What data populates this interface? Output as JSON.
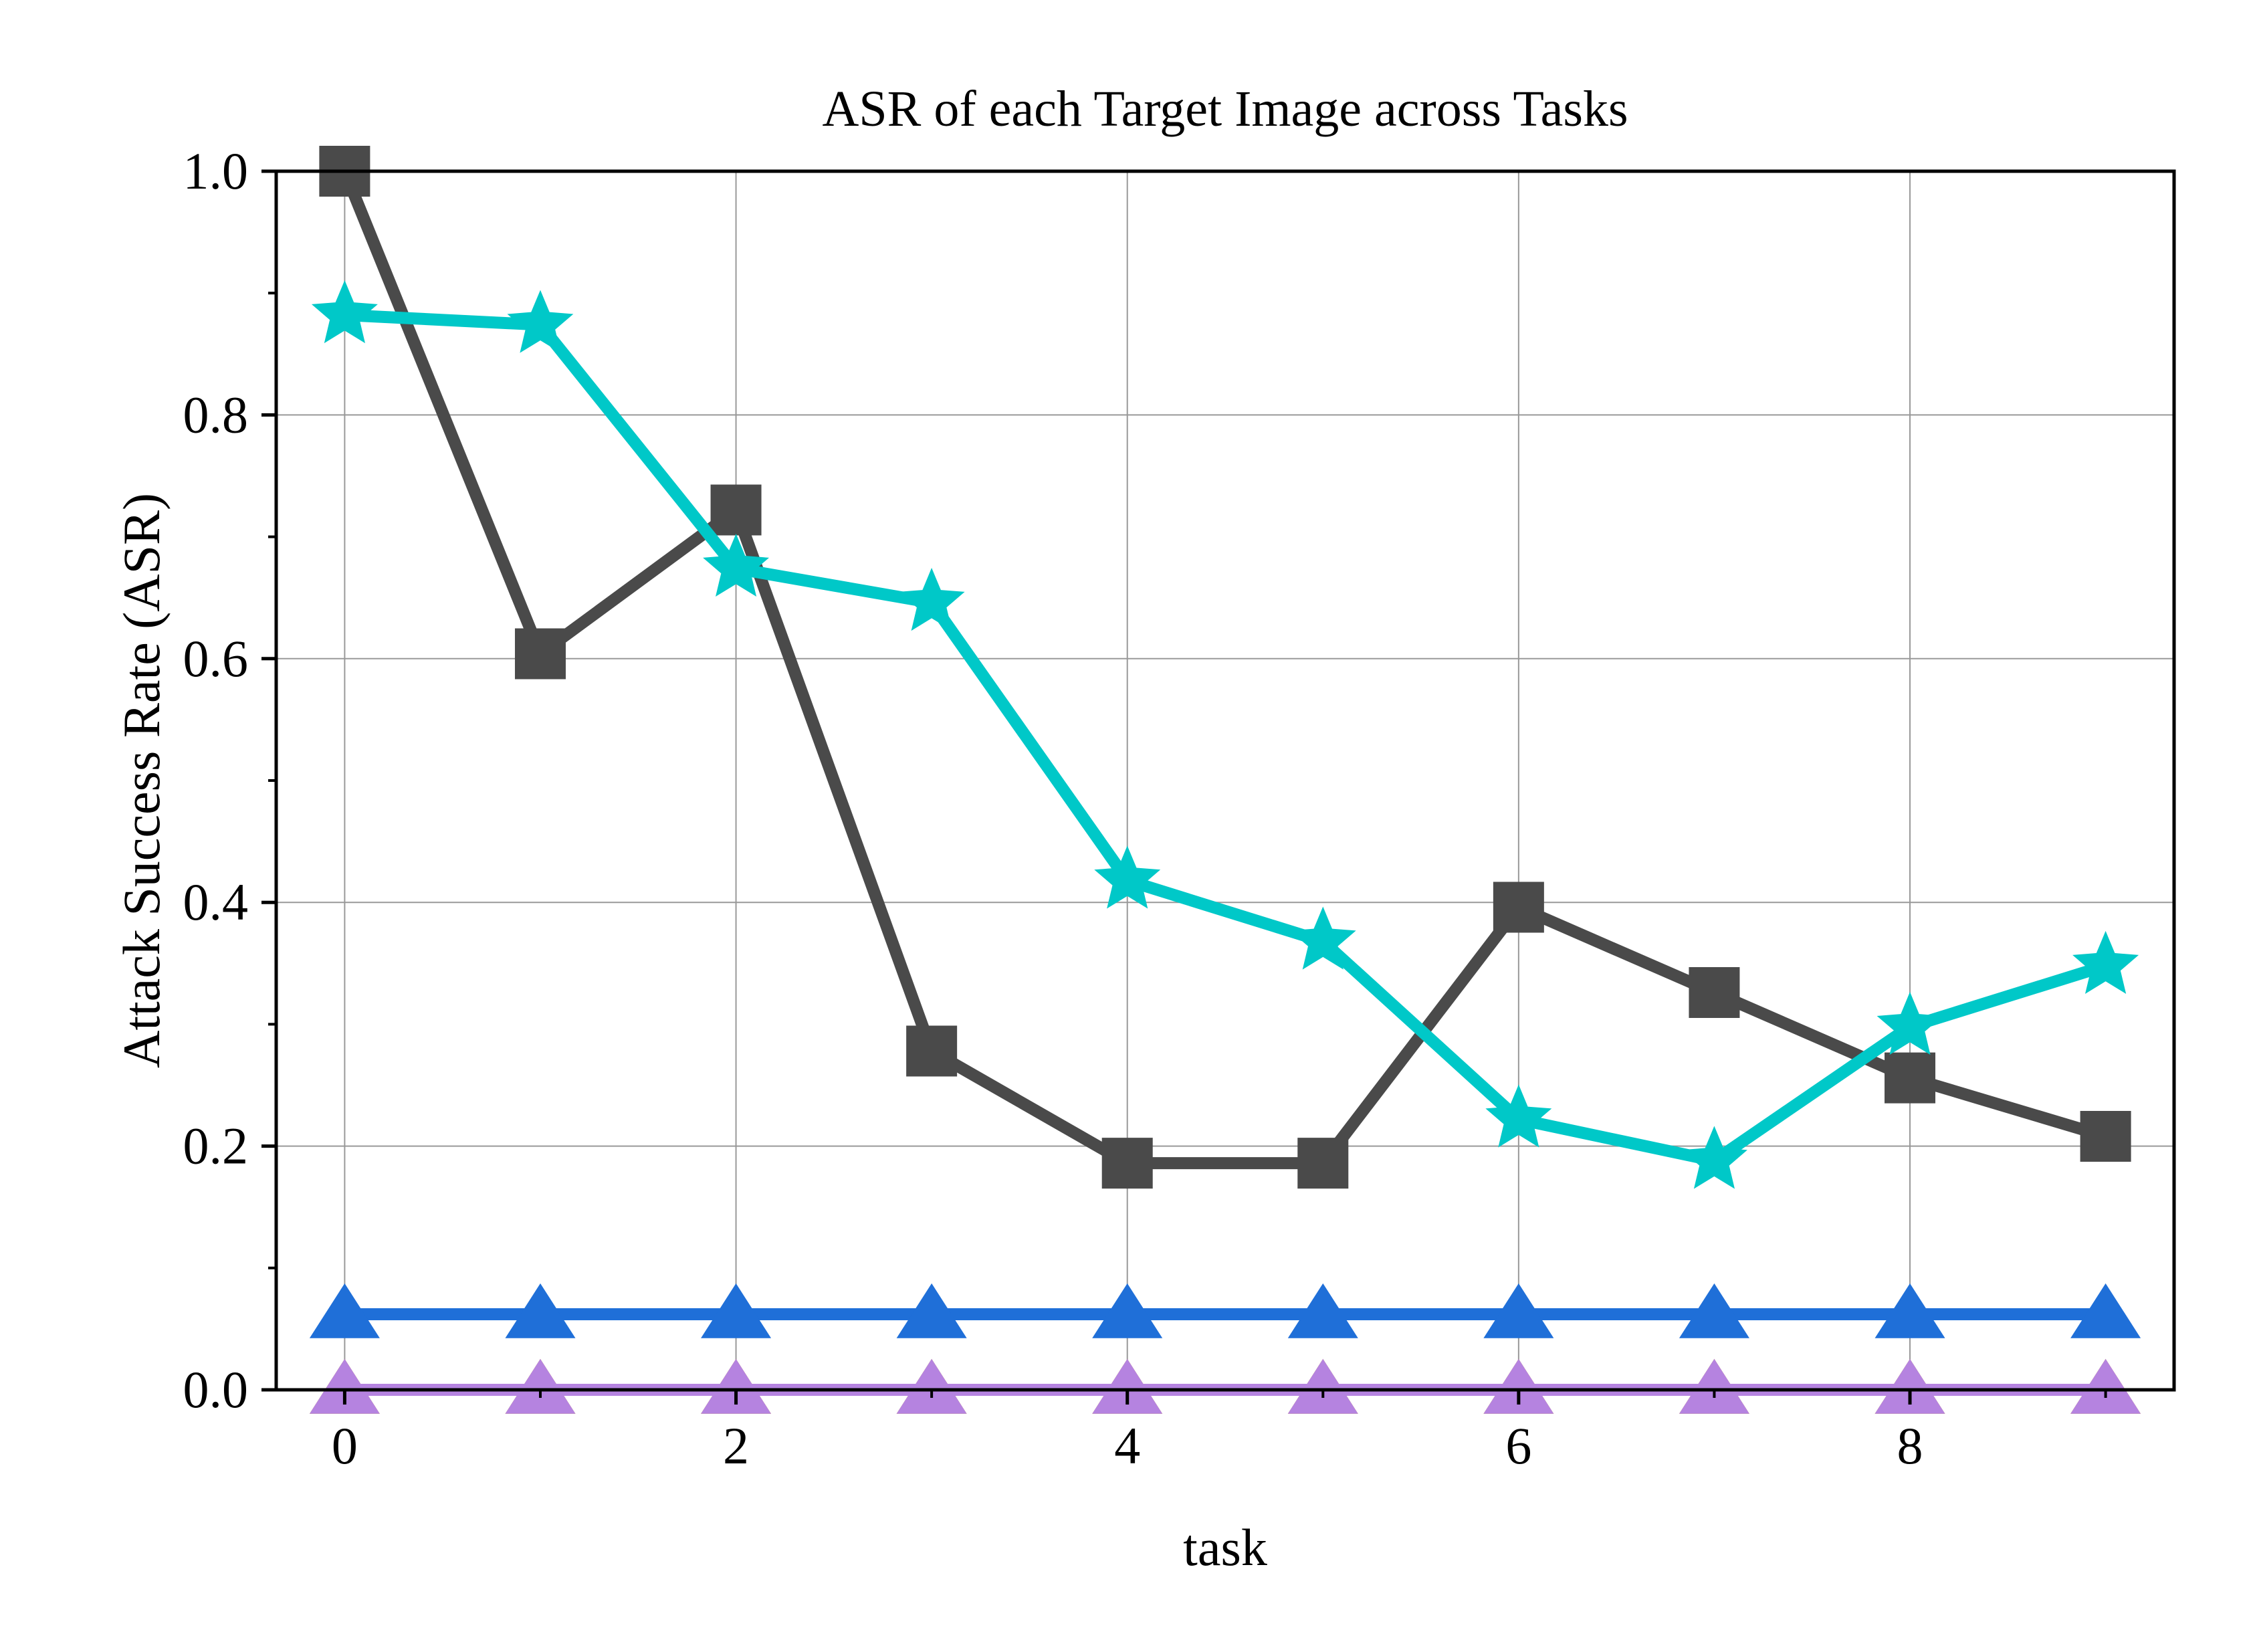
{
  "chart_data": {
    "type": "line",
    "title": "ASR of each Target Image across Tasks",
    "xlabel": "task",
    "ylabel": "Attack Success Rate (ASR)",
    "xlim": [
      -0.35,
      9.35
    ],
    "ylim": [
      0.0,
      1.0
    ],
    "xticks": [
      0,
      2,
      4,
      6,
      8
    ],
    "xtick_labels": [
      "0",
      "2",
      "4",
      "6",
      "8"
    ],
    "yticks": [
      0.0,
      0.2,
      0.4,
      0.6,
      0.8,
      1.0
    ],
    "ytick_labels": [
      "0.0",
      "0.2",
      "0.4",
      "0.6",
      "0.8",
      "1.0"
    ],
    "grid": true,
    "legend": "none",
    "x": [
      0,
      1,
      2,
      3,
      4,
      5,
      6,
      7,
      8,
      9
    ],
    "series": [
      {
        "color": "#d4a000",
        "marker": "triangle",
        "values": [
          0.0,
          0.0,
          0.0,
          0.0,
          0.0,
          0.0,
          0.0,
          0.0,
          0.0,
          0.0
        ]
      },
      {
        "color": "#b583e0",
        "marker": "triangle",
        "values": [
          0.0,
          0.0,
          0.0,
          0.0,
          0.0,
          0.0,
          0.0,
          0.0,
          0.0,
          0.0
        ]
      },
      {
        "color": "#1f6fd8",
        "marker": "triangle",
        "values": [
          0.062,
          0.062,
          0.062,
          0.062,
          0.062,
          0.062,
          0.062,
          0.062,
          0.062,
          0.062
        ]
      },
      {
        "color": "#4a4a4a",
        "marker": "square",
        "values": [
          1.0,
          0.604,
          0.722,
          0.278,
          0.186,
          0.186,
          0.396,
          0.326,
          0.256,
          0.208
        ]
      },
      {
        "color": "#00c8c8",
        "marker": "star",
        "values": [
          0.882,
          0.874,
          0.674,
          0.646,
          0.418,
          0.368,
          0.222,
          0.188,
          0.298,
          0.348
        ]
      }
    ]
  }
}
